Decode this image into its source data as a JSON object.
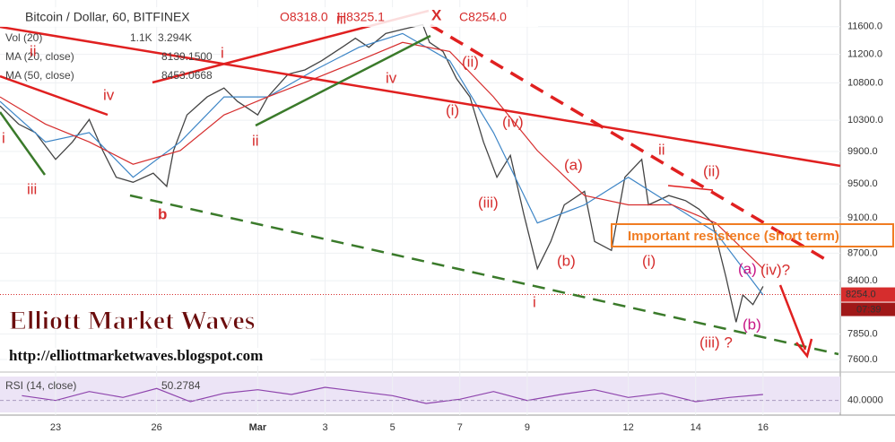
{
  "chart_data": [
    {
      "type": "line",
      "title": "Bitcoin / Dollar, 60, BITFINEX",
      "ohlc": [
        "O8318.0",
        "H8325.1",
        "C8254.0"
      ],
      "log_scale": true,
      "xlim": [
        21.35,
        46.24
      ],
      "xticks": [
        23,
        26,
        {
          "value": 29,
          "label": "Mar"
        },
        {
          "value": 31,
          "label": "3"
        },
        {
          "value": 33,
          "label": "5"
        },
        {
          "value": 35,
          "label": "7"
        },
        {
          "value": 37,
          "label": "9"
        },
        {
          "value": 40,
          "label": "12"
        },
        {
          "value": 42,
          "label": "14"
        },
        {
          "value": 44,
          "label": "16"
        }
      ],
      "ylim": [
        7480,
        12000
      ],
      "yticks": [
        {
          "value": 11600,
          "label": "11600.0"
        },
        {
          "value": 11200,
          "label": "11200.0"
        },
        {
          "value": 10800,
          "label": "10800.0"
        },
        {
          "value": 10300,
          "label": "10300.0"
        },
        {
          "value": 9900,
          "label": "9900.0"
        },
        {
          "value": 9500,
          "label": "9500.0"
        },
        {
          "value": 9100,
          "label": "9100.0"
        },
        {
          "value": 8700,
          "label": "8700.0"
        },
        {
          "value": 8400,
          "label": "8400.0"
        },
        {
          "value": 7850,
          "label": "7850.0"
        },
        {
          "value": 7600,
          "label": "7600.0"
        }
      ],
      "grid": true,
      "series": [
        {
          "color": "#444444",
          "x": [
            21.35,
            21.9,
            22.4,
            23.0,
            23.5,
            24.0,
            24.4,
            24.8,
            25.3,
            25.9,
            26.3,
            26.5,
            26.9,
            27.5,
            28.0,
            28.4,
            29.0,
            29.3,
            29.9,
            30.4,
            30.9,
            31.5,
            31.9,
            32.3,
            32.8,
            33.3,
            33.9,
            34.1,
            34.5,
            34.9,
            35.3,
            35.7,
            36.1,
            36.5,
            36.9,
            37.3,
            37.7,
            38.1,
            38.7,
            39.0,
            39.5,
            39.9,
            40.4,
            40.6,
            41.2,
            41.7,
            42.1,
            42.5,
            42.9,
            43.2,
            43.4,
            43.7,
            44.0
          ],
          "values": [
            10490,
            10250,
            10140,
            9800,
            10020,
            10310,
            9910,
            9580,
            9520,
            9630,
            9470,
            9910,
            10370,
            10610,
            10730,
            10550,
            10370,
            10610,
            10920,
            10980,
            11110,
            11300,
            11430,
            11300,
            11500,
            11560,
            11630,
            11370,
            11240,
            10860,
            10610,
            10020,
            9580,
            9850,
            9140,
            8530,
            8830,
            9250,
            9410,
            8830,
            8730,
            9580,
            9800,
            9250,
            9360,
            9300,
            9200,
            9040,
            8440,
            7970,
            8250,
            8150,
            8340
          ]
        },
        {
          "name": "MA (20, close)",
          "value_label": "8139.1500",
          "color": "#3d85c6",
          "x": [
            21.35,
            22.7,
            24.0,
            25.3,
            26.7,
            28.0,
            29.3,
            30.7,
            32.0,
            33.3,
            34.7,
            36.0,
            37.3,
            38.7,
            40.0,
            41.3,
            42.6,
            44.0
          ],
          "values": [
            10550,
            10020,
            10140,
            9580,
            10020,
            10610,
            10610,
            10980,
            11300,
            11500,
            11110,
            10140,
            9040,
            9250,
            9580,
            9250,
            8930,
            8250
          ]
        },
        {
          "name": "MA (50, close)",
          "value_label": "8453.0668",
          "color": "#d62d2d",
          "x": [
            21.35,
            22.7,
            24.0,
            25.3,
            26.7,
            28.0,
            29.3,
            30.7,
            32.0,
            33.3,
            34.7,
            36.0,
            37.3,
            38.7,
            40.0,
            41.3,
            42.6,
            44.0
          ],
          "values": [
            10610,
            10250,
            10020,
            9740,
            9910,
            10370,
            10610,
            10860,
            11110,
            11370,
            11240,
            10610,
            9910,
            9360,
            9250,
            9250,
            9040,
            8530
          ]
        }
      ],
      "volume": {
        "name": "Vol (20)",
        "labels": [
          "1.1K",
          "3.294K"
        ]
      },
      "last_price": {
        "value": 8254,
        "label": "8254.0",
        "time": "07:39"
      },
      "banner": "Important resistence (short term)",
      "annotations": [
        {
          "text": "i",
          "color": "#d62d2d"
        },
        {
          "text": "ii",
          "color": "#d62d2d"
        },
        {
          "text": "iii",
          "color": "#d62d2d"
        },
        {
          "text": "iv",
          "color": "#d62d2d"
        },
        {
          "text": "b",
          "color": "#d62d2d"
        },
        {
          "text": "i",
          "color": "#d62d2d"
        },
        {
          "text": "ii",
          "color": "#d62d2d"
        },
        {
          "text": "iii",
          "color": "#d62d2d"
        },
        {
          "text": "iv",
          "color": "#d62d2d"
        },
        {
          "text": "X",
          "color": "#d62d2d"
        },
        {
          "text": "(ii)",
          "color": "#d62d2d"
        },
        {
          "text": "(i)",
          "color": "#d62d2d"
        },
        {
          "text": "(iv)",
          "color": "#d62d2d"
        },
        {
          "text": "(iii)",
          "color": "#d62d2d"
        },
        {
          "text": "i",
          "color": "#d62d2d"
        },
        {
          "text": "(a)",
          "color": "#d62d2d"
        },
        {
          "text": "(b)",
          "color": "#d62d2d"
        },
        {
          "text": "ii",
          "color": "#d62d2d"
        },
        {
          "text": "(ii)",
          "color": "#d62d2d"
        },
        {
          "text": "(i)",
          "color": "#d62d2d"
        },
        {
          "text": "(iii) ?",
          "color": "#d62d2d"
        },
        {
          "text": "(iv)?",
          "color": "#d62d2d"
        },
        {
          "text": "(a)",
          "color": "#c71585"
        },
        {
          "text": "(b)",
          "color": "#c71585"
        }
      ]
    },
    {
      "type": "line",
      "title": "RSI (14, close)",
      "value_label": "50.2784",
      "color": "#8e44ad",
      "xlim": [
        21.35,
        46.24
      ],
      "ylim": [
        20,
        80
      ],
      "yticks": [
        {
          "value": 40,
          "label": "40.0000"
        }
      ],
      "x": [
        22,
        23,
        24,
        25,
        26,
        27,
        28,
        29,
        30,
        31,
        32,
        33,
        34,
        35,
        36,
        37,
        38,
        39,
        40,
        41,
        42,
        43,
        44
      ],
      "values": [
        48,
        40,
        55,
        45,
        60,
        38,
        52,
        58,
        50,
        62,
        55,
        48,
        35,
        42,
        55,
        40,
        50,
        58,
        45,
        52,
        38,
        45,
        50
      ]
    }
  ],
  "watermark": {
    "title": "Elliott Market Waves",
    "url": "http://elliottmarketwaves.blogspot.com"
  }
}
